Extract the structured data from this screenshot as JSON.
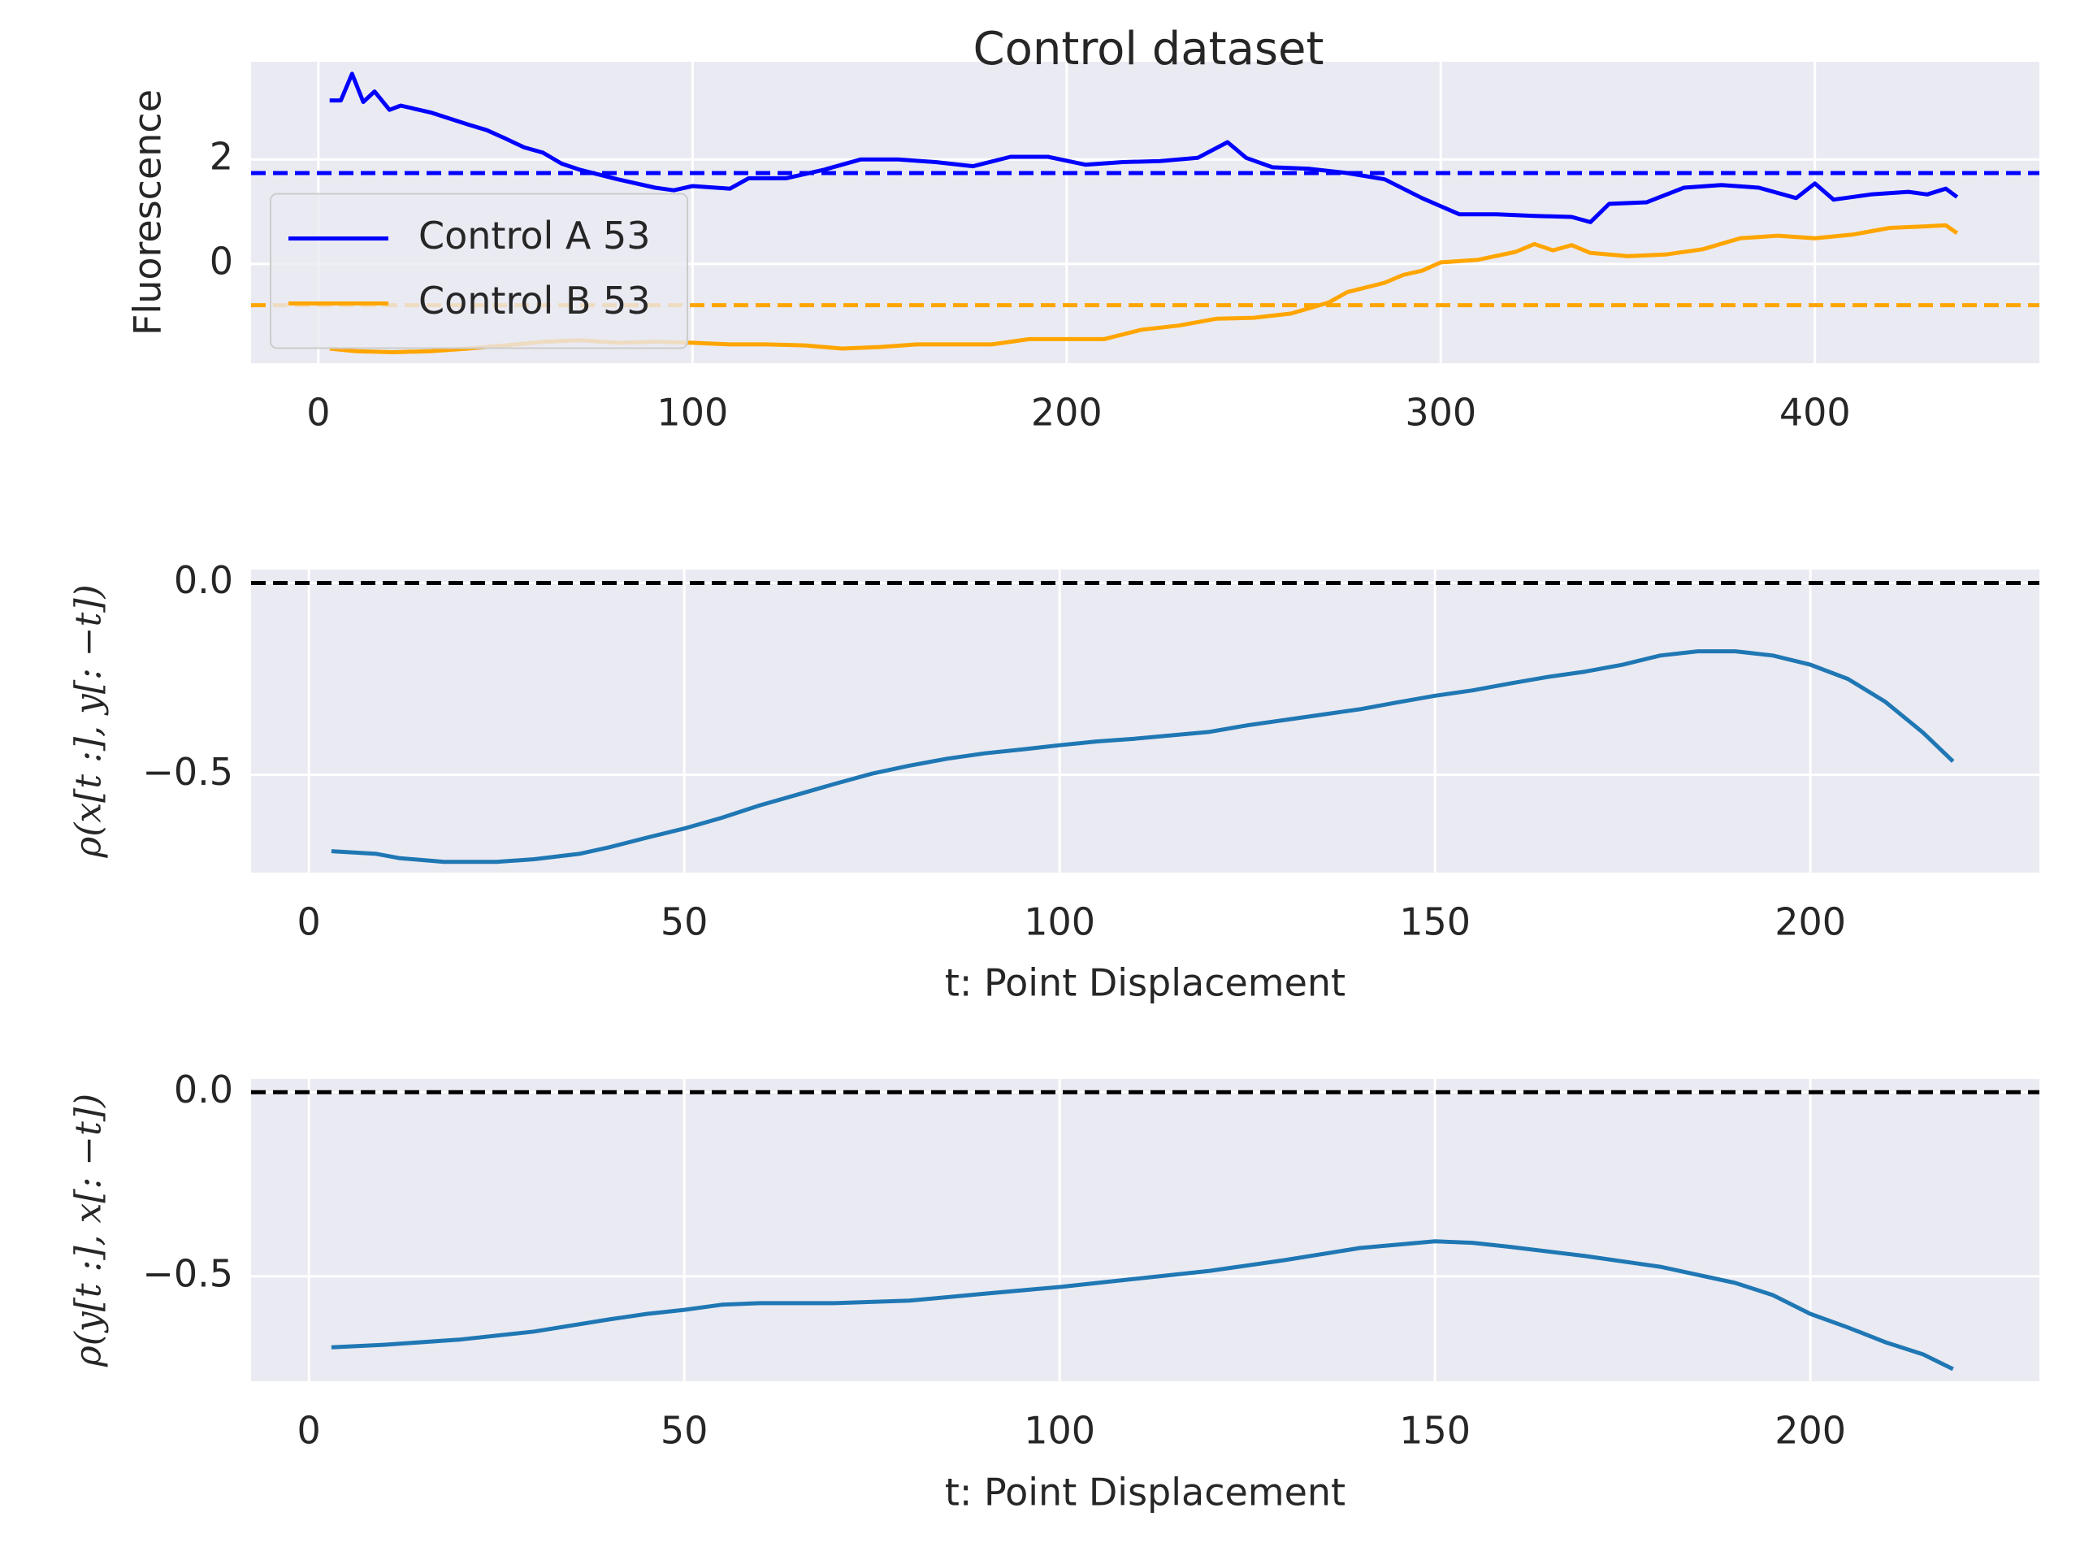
{
  "chart_data": [
    {
      "type": "line",
      "title": "Control dataset",
      "ylabel": "Fluorescence",
      "xlim": [
        -18,
        460
      ],
      "ylim": [
        -1.9,
        3.87
      ],
      "xticks": [
        0,
        100,
        200,
        300,
        400
      ],
      "yticks": [
        0,
        2
      ],
      "grid": true,
      "background": "#eaeaf2",
      "legend": "center left",
      "series": [
        {
          "name": "Control A 53",
          "color": "#0000ff",
          "x": [
            3,
            6,
            9,
            12,
            15,
            19,
            22,
            30,
            40,
            45,
            50,
            55,
            60,
            65,
            70,
            80,
            90,
            95,
            100,
            110,
            115,
            125,
            135,
            145,
            155,
            165,
            175,
            185,
            195,
            205,
            215,
            225,
            235,
            243,
            248,
            255,
            265,
            275,
            285,
            295,
            305,
            315,
            325,
            335,
            340,
            345,
            355,
            365,
            375,
            385,
            395,
            400,
            405,
            415,
            425,
            430,
            435,
            438
          ],
          "values": [
            3.13,
            3.13,
            3.64,
            3.1,
            3.3,
            2.95,
            3.03,
            2.9,
            2.67,
            2.56,
            2.4,
            2.23,
            2.13,
            1.92,
            1.8,
            1.62,
            1.46,
            1.41,
            1.49,
            1.44,
            1.64,
            1.64,
            1.8,
            2.0,
            2.0,
            1.95,
            1.87,
            2.05,
            2.05,
            1.9,
            1.95,
            1.97,
            2.03,
            2.33,
            2.03,
            1.85,
            1.82,
            1.74,
            1.62,
            1.26,
            0.95,
            0.95,
            0.92,
            0.9,
            0.8,
            1.15,
            1.18,
            1.46,
            1.51,
            1.46,
            1.26,
            1.54,
            1.23,
            1.33,
            1.38,
            1.33,
            1.44,
            1.28
          ]
        },
        {
          "name": "Control B 53",
          "color": "#ffa500",
          "x": [
            3,
            10,
            20,
            30,
            40,
            50,
            60,
            70,
            80,
            90,
            100,
            110,
            120,
            130,
            140,
            150,
            160,
            170,
            180,
            190,
            200,
            210,
            220,
            230,
            240,
            250,
            260,
            270,
            275,
            285,
            290,
            295,
            300,
            310,
            320,
            325,
            330,
            335,
            340,
            350,
            360,
            370,
            380,
            390,
            400,
            410,
            420,
            430,
            435,
            438
          ],
          "values": [
            -1.62,
            -1.67,
            -1.69,
            -1.67,
            -1.62,
            -1.56,
            -1.49,
            -1.46,
            -1.51,
            -1.49,
            -1.51,
            -1.54,
            -1.54,
            -1.56,
            -1.62,
            -1.59,
            -1.54,
            -1.54,
            -1.54,
            -1.44,
            -1.44,
            -1.44,
            -1.26,
            -1.18,
            -1.05,
            -1.03,
            -0.95,
            -0.74,
            -0.54,
            -0.36,
            -0.21,
            -0.13,
            0.03,
            0.08,
            0.23,
            0.38,
            0.26,
            0.36,
            0.21,
            0.15,
            0.18,
            0.28,
            0.49,
            0.54,
            0.49,
            0.56,
            0.69,
            0.72,
            0.74,
            0.59
          ]
        }
      ],
      "hlines": [
        {
          "y": 1.74,
          "color": "#0000ff"
        },
        {
          "y": -0.79,
          "color": "#ffa500"
        }
      ]
    },
    {
      "type": "line",
      "xlabel": "t: Point Displacement",
      "ylabel": "ρ(x[t :], y[: −t])",
      "xlim": [
        -7.7,
        230.5
      ],
      "ylim": [
        -0.755,
        0.035
      ],
      "xticks": [
        0,
        50,
        100,
        150,
        200
      ],
      "yticks": [
        {
          "value": 0,
          "label": "0.0"
        },
        {
          "value": -0.5,
          "label": "−0.5"
        }
      ],
      "grid": true,
      "background": "#eaeaf2",
      "x": [
        3,
        9,
        12,
        18,
        25,
        30,
        36,
        40,
        45,
        50,
        55,
        60,
        65,
        70,
        75,
        80,
        85,
        90,
        95,
        100,
        105,
        110,
        120,
        125,
        130,
        135,
        140,
        145,
        150,
        155,
        160,
        165,
        170,
        175,
        180,
        185,
        190,
        195,
        200,
        205,
        210,
        215,
        219
      ],
      "series": [
        {
          "color": "#1f77b4",
          "values": [
            -0.699,
            -0.706,
            -0.717,
            -0.727,
            -0.727,
            -0.72,
            -0.706,
            -0.689,
            -0.664,
            -0.64,
            -0.612,
            -0.58,
            -0.552,
            -0.524,
            -0.497,
            -0.476,
            -0.458,
            -0.444,
            -0.434,
            -0.423,
            -0.413,
            -0.406,
            -0.388,
            -0.371,
            -0.357,
            -0.343,
            -0.329,
            -0.311,
            -0.294,
            -0.28,
            -0.262,
            -0.245,
            -0.231,
            -0.213,
            -0.189,
            -0.178,
            -0.178,
            -0.189,
            -0.213,
            -0.25,
            -0.31,
            -0.39,
            -0.465
          ]
        }
      ],
      "hlines": [
        {
          "y": 0,
          "color": "#000000"
        }
      ]
    },
    {
      "type": "line",
      "xlabel": "t: Point Displacement",
      "ylabel": "ρ(y[t :], x[: −t])",
      "xlim": [
        -7.7,
        230.5
      ],
      "ylim": [
        -0.785,
        0.036
      ],
      "xticks": [
        0,
        50,
        100,
        150,
        200
      ],
      "yticks": [
        {
          "value": 0,
          "label": "0.0"
        },
        {
          "value": -0.5,
          "label": "−0.5"
        }
      ],
      "grid": true,
      "background": "#eaeaf2",
      "x": [
        3,
        10,
        20,
        30,
        40,
        45,
        50,
        55,
        60,
        70,
        80,
        90,
        100,
        110,
        120,
        130,
        140,
        150,
        155,
        160,
        170,
        180,
        190,
        195,
        200,
        205,
        210,
        215,
        219
      ],
      "series": [
        {
          "color": "#1f77b4",
          "values": [
            -0.693,
            -0.686,
            -0.672,
            -0.65,
            -0.617,
            -0.602,
            -0.591,
            -0.577,
            -0.573,
            -0.573,
            -0.566,
            -0.547,
            -0.529,
            -0.507,
            -0.485,
            -0.456,
            -0.423,
            -0.405,
            -0.409,
            -0.42,
            -0.445,
            -0.474,
            -0.518,
            -0.551,
            -0.602,
            -0.639,
            -0.679,
            -0.712,
            -0.752
          ]
        }
      ],
      "hlines": [
        {
          "y": 0,
          "color": "#000000"
        }
      ]
    }
  ]
}
